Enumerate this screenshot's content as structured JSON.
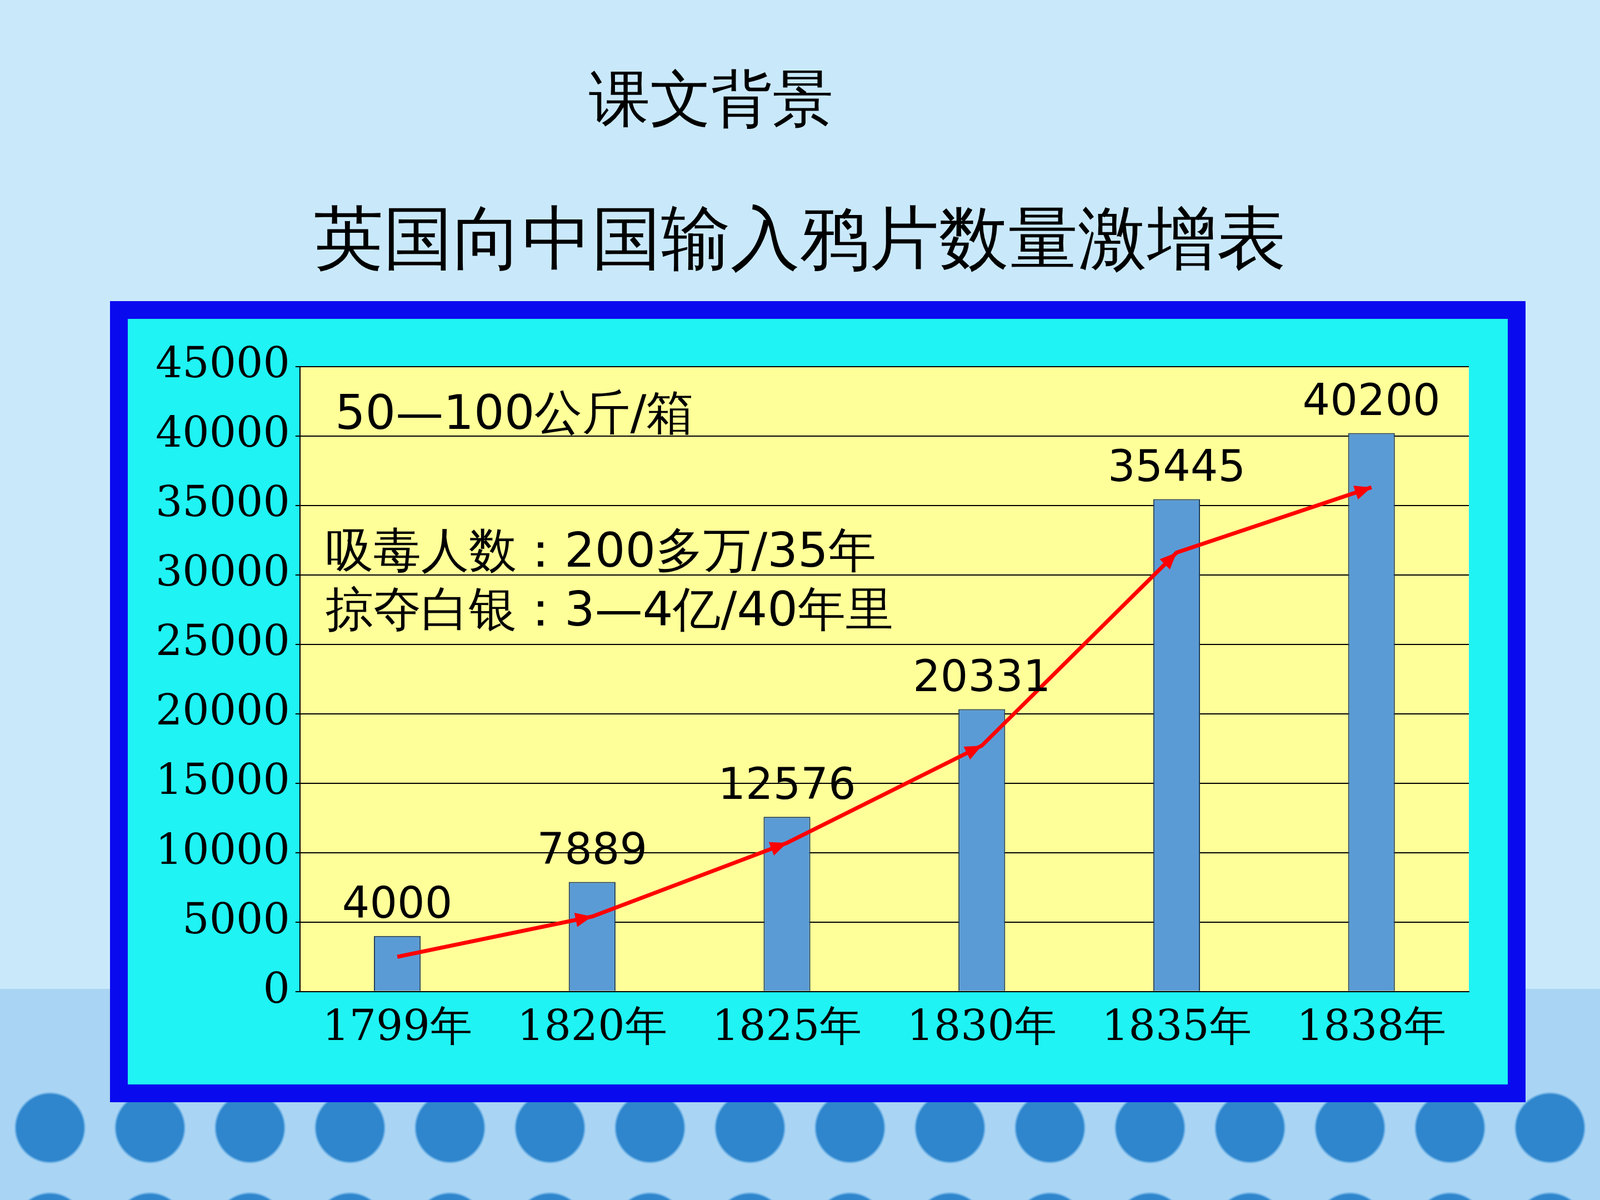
{
  "title": "课文背景",
  "chart_data": {
    "type": "bar",
    "title": "英国向中国输入鸦片数量激增表",
    "categories": [
      "1799年",
      "1820年",
      "1825年",
      "1830年",
      "1835年",
      "1838年"
    ],
    "series": [
      {
        "type": "bar",
        "color": "#5b9bd5",
        "values": [
          4000,
          7889,
          12576,
          20331,
          35445,
          40200
        ],
        "data_labels": true
      },
      {
        "type": "line",
        "color": "#ff0000",
        "marker": "arrow",
        "line_style": "solid",
        "values": [
          2500,
          5400,
          10700,
          17700,
          31600,
          36300
        ]
      }
    ],
    "ylim": [
      0,
      45000
    ],
    "yticks": [
      0,
      5000,
      10000,
      15000,
      20000,
      25000,
      30000,
      35000,
      40000,
      45000
    ],
    "grid": true,
    "annotations": [
      "50—100公斤/箱",
      "吸毒人数：200多万/35年",
      "掠夺白银：3—4亿/40年里"
    ]
  }
}
